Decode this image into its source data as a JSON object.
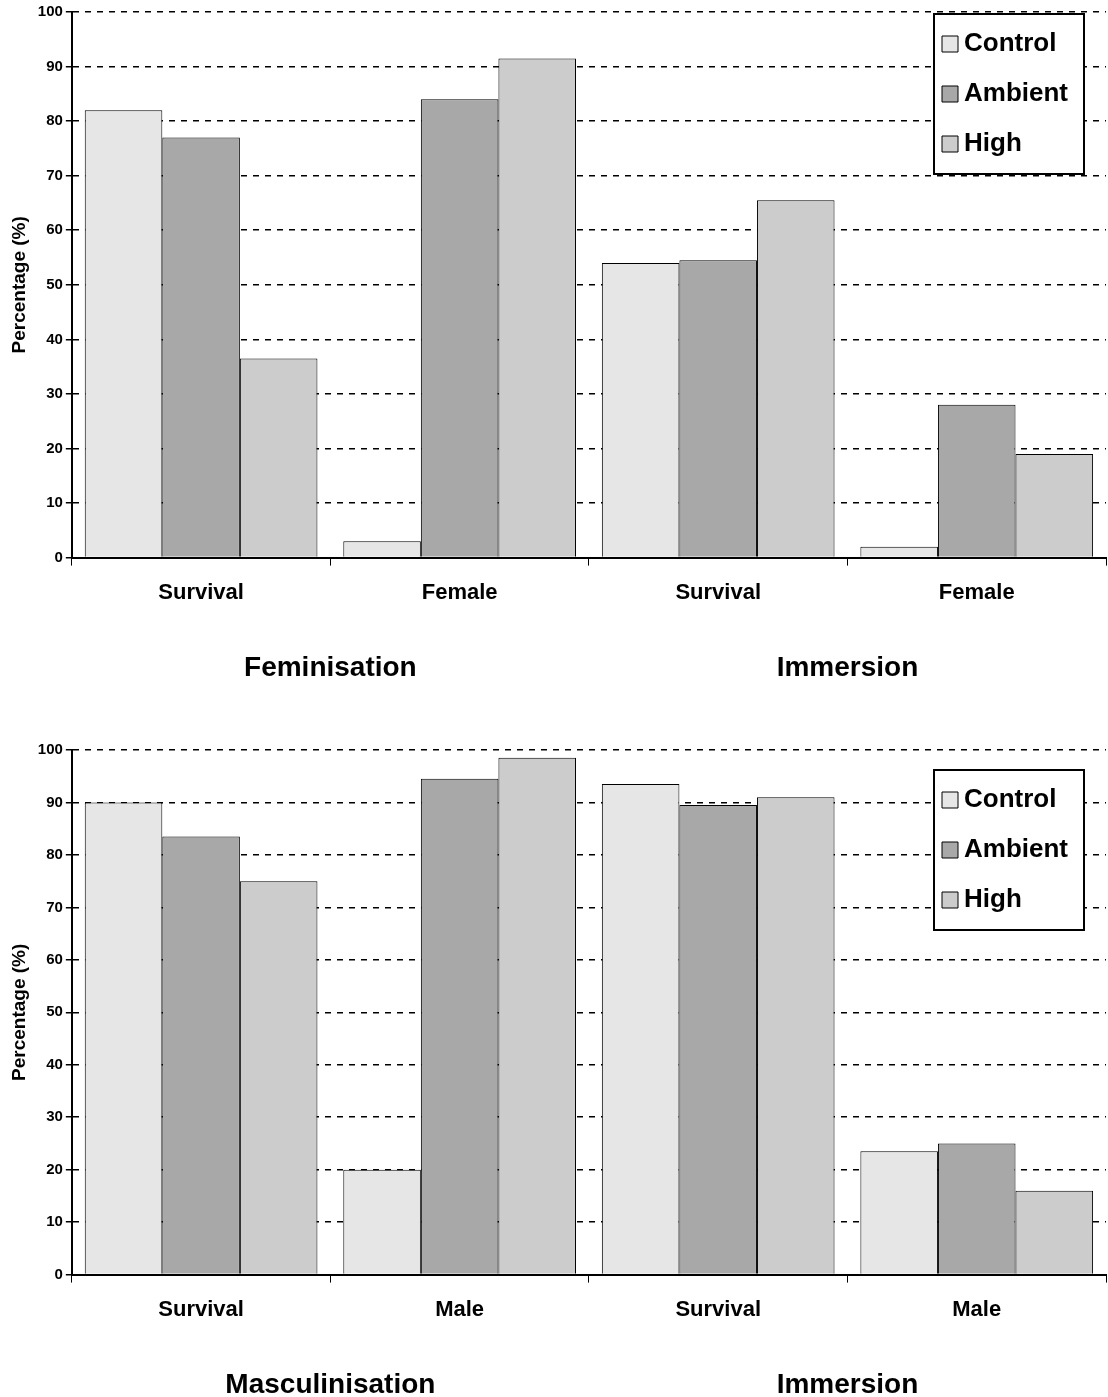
{
  "chart_data": [
    {
      "type": "bar",
      "categories": [
        "Survival",
        "Female",
        "Survival",
        "Female"
      ],
      "ylabel": "Percentage (%)",
      "ylim": [
        0,
        100
      ],
      "yticks": [
        0,
        10,
        20,
        30,
        40,
        50,
        60,
        70,
        80,
        90,
        100
      ],
      "grid": "y",
      "legend": "top right",
      "annotations": [
        "Feminisation",
        "Immersion"
      ],
      "series": [
        {
          "name": "Control",
          "color": "#e6e6e6",
          "values": [
            82,
            3,
            54,
            2
          ]
        },
        {
          "name": "Ambient",
          "color": "#a8a8a8",
          "values": [
            77,
            84,
            54.5,
            28
          ]
        },
        {
          "name": "High",
          "color": "#cccccc",
          "values": [
            36.5,
            91.5,
            65.5,
            19
          ]
        }
      ]
    },
    {
      "type": "bar",
      "categories": [
        "Survival",
        "Male",
        "Survival",
        "Male"
      ],
      "ylabel": "Percentage (%)",
      "ylim": [
        0,
        100
      ],
      "yticks": [
        0,
        10,
        20,
        30,
        40,
        50,
        60,
        70,
        80,
        90,
        100
      ],
      "grid": "y",
      "legend": "top right",
      "annotations": [
        "Masculinisation",
        "Immersion"
      ],
      "series": [
        {
          "name": "Control",
          "color": "#e6e6e6",
          "values": [
            90,
            20,
            93.5,
            23.5
          ]
        },
        {
          "name": "Ambient",
          "color": "#a8a8a8",
          "values": [
            83.5,
            94.5,
            89.5,
            25
          ]
        },
        {
          "name": "High",
          "color": "#cccccc",
          "values": [
            75,
            98.5,
            91,
            16
          ]
        }
      ]
    }
  ]
}
